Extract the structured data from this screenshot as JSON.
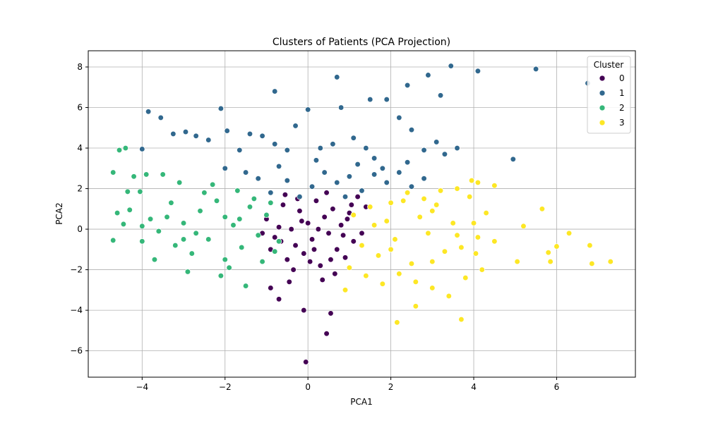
{
  "chart_data": {
    "type": "scatter",
    "title": "Clusters of Patients (PCA Projection)",
    "xlabel": "PCA1",
    "ylabel": "PCA2",
    "xlim": [
      -5.3,
      7.9
    ],
    "ylim": [
      -7.3,
      8.8
    ],
    "xticks": [
      -4,
      -2,
      0,
      2,
      4,
      6
    ],
    "yticks": [
      -6,
      -4,
      -2,
      0,
      2,
      4,
      6,
      8
    ],
    "xtick_labels": [
      "−4",
      "−2",
      "0",
      "2",
      "4",
      "6"
    ],
    "ytick_labels": [
      "−6",
      "−4",
      "−2",
      "0",
      "2",
      "4",
      "6",
      "8"
    ],
    "grid": true,
    "legend": {
      "title": "Cluster",
      "position": "top-right"
    },
    "series": [
      {
        "name": "0",
        "color": "#440154",
        "points": [
          [
            -1.0,
            0.5
          ],
          [
            -0.8,
            -0.4
          ],
          [
            -0.6,
            1.2
          ],
          [
            -0.5,
            -1.5
          ],
          [
            -0.4,
            0.0
          ],
          [
            -0.3,
            -0.8
          ],
          [
            -0.2,
            0.9
          ],
          [
            -0.1,
            -1.2
          ],
          [
            0.0,
            0.3
          ],
          [
            0.1,
            -0.5
          ],
          [
            0.2,
            1.4
          ],
          [
            0.3,
            -1.8
          ],
          [
            0.4,
            0.6
          ],
          [
            0.5,
            -0.2
          ],
          [
            0.6,
            1.0
          ],
          [
            0.7,
            -1.0
          ],
          [
            0.8,
            0.2
          ],
          [
            0.9,
            -1.4
          ],
          [
            1.0,
            0.8
          ],
          [
            1.1,
            -0.6
          ],
          [
            1.2,
            1.6
          ],
          [
            -0.9,
            -1.0
          ],
          [
            -0.7,
            0.1
          ],
          [
            -0.55,
            1.7
          ],
          [
            -0.35,
            -2.0
          ],
          [
            -0.15,
            0.4
          ],
          [
            0.05,
            -1.6
          ],
          [
            0.25,
            0.0
          ],
          [
            0.45,
            1.8
          ],
          [
            0.65,
            -2.2
          ],
          [
            0.85,
            -0.3
          ],
          [
            1.05,
            1.2
          ],
          [
            -0.65,
            -0.6
          ],
          [
            -0.25,
            1.5
          ],
          [
            0.15,
            -1.0
          ],
          [
            0.55,
            -1.5
          ],
          [
            0.95,
            0.5
          ],
          [
            1.3,
            -0.2
          ],
          [
            1.4,
            1.1
          ],
          [
            -1.1,
            -0.2
          ],
          [
            -0.45,
            -2.6
          ],
          [
            0.35,
            -2.5
          ],
          [
            -0.1,
            -4.0
          ],
          [
            0.55,
            -4.15
          ],
          [
            0.45,
            -5.15
          ],
          [
            -0.05,
            -6.55
          ],
          [
            -0.7,
            -3.45
          ],
          [
            -0.9,
            -2.9
          ]
        ]
      },
      {
        "name": "1",
        "color": "#31688e",
        "points": [
          [
            -3.85,
            5.8
          ],
          [
            -3.55,
            5.5
          ],
          [
            -3.25,
            4.7
          ],
          [
            -2.95,
            4.8
          ],
          [
            -2.7,
            4.6
          ],
          [
            -2.4,
            4.4
          ],
          [
            -2.1,
            5.95
          ],
          [
            -1.95,
            4.85
          ],
          [
            -1.65,
            3.9
          ],
          [
            -1.4,
            4.7
          ],
          [
            -1.1,
            4.6
          ],
          [
            -0.8,
            4.2
          ],
          [
            -0.5,
            3.9
          ],
          [
            -0.3,
            5.1
          ],
          [
            0.0,
            5.9
          ],
          [
            0.3,
            4.0
          ],
          [
            0.6,
            4.2
          ],
          [
            0.8,
            6.0
          ],
          [
            1.1,
            4.5
          ],
          [
            1.4,
            4.0
          ],
          [
            1.6,
            3.5
          ],
          [
            1.9,
            6.4
          ],
          [
            2.2,
            5.5
          ],
          [
            2.5,
            4.9
          ],
          [
            2.8,
            3.9
          ],
          [
            3.1,
            4.3
          ],
          [
            3.3,
            3.7
          ],
          [
            3.6,
            4.0
          ],
          [
            -4.0,
            3.95
          ],
          [
            -0.8,
            6.8
          ],
          [
            0.7,
            7.5
          ],
          [
            1.5,
            6.4
          ],
          [
            2.4,
            7.1
          ],
          [
            2.9,
            7.6
          ],
          [
            3.45,
            8.05
          ],
          [
            4.1,
            7.8
          ],
          [
            5.5,
            7.9
          ],
          [
            6.75,
            7.2
          ],
          [
            4.95,
            3.45
          ],
          [
            3.2,
            6.6
          ],
          [
            -2.0,
            3.0
          ],
          [
            -1.5,
            2.8
          ],
          [
            -1.2,
            2.5
          ],
          [
            -0.9,
            1.8
          ],
          [
            -0.5,
            2.4
          ],
          [
            0.1,
            2.1
          ],
          [
            0.4,
            2.8
          ],
          [
            0.7,
            2.3
          ],
          [
            1.0,
            2.6
          ],
          [
            1.3,
            1.9
          ],
          [
            1.6,
            2.7
          ],
          [
            1.9,
            2.3
          ],
          [
            2.2,
            2.8
          ],
          [
            2.5,
            2.1
          ],
          [
            2.8,
            2.5
          ],
          [
            -0.2,
            1.6
          ],
          [
            0.9,
            1.6
          ],
          [
            1.2,
            3.2
          ],
          [
            0.2,
            3.4
          ],
          [
            -0.7,
            3.1
          ],
          [
            1.8,
            3.0
          ],
          [
            2.4,
            3.3
          ]
        ]
      },
      {
        "name": "2",
        "color": "#35b779",
        "points": [
          [
            -4.7,
            2.8
          ],
          [
            -4.55,
            3.9
          ],
          [
            -4.4,
            4.0
          ],
          [
            -4.35,
            1.85
          ],
          [
            -4.2,
            2.6
          ],
          [
            -4.05,
            1.85
          ],
          [
            -3.9,
            2.7
          ],
          [
            -4.6,
            0.8
          ],
          [
            -4.3,
            0.95
          ],
          [
            -4.45,
            0.25
          ],
          [
            -4.0,
            0.15
          ],
          [
            -4.7,
            -0.55
          ],
          [
            -4.0,
            -0.6
          ],
          [
            -3.6,
            -0.1
          ],
          [
            -3.4,
            0.6
          ],
          [
            -3.2,
            -0.8
          ],
          [
            -3.0,
            0.3
          ],
          [
            -2.8,
            -1.2
          ],
          [
            -2.6,
            0.9
          ],
          [
            -2.4,
            -0.5
          ],
          [
            -2.2,
            1.4
          ],
          [
            -2.0,
            -1.5
          ],
          [
            -1.8,
            0.2
          ],
          [
            -1.6,
            -0.9
          ],
          [
            -1.4,
            1.1
          ],
          [
            -1.2,
            -0.3
          ],
          [
            -1.0,
            0.7
          ],
          [
            -0.8,
            -1.1
          ],
          [
            -3.7,
            -1.5
          ],
          [
            -3.3,
            1.3
          ],
          [
            -2.9,
            -2.1
          ],
          [
            -2.5,
            1.8
          ],
          [
            -2.1,
            -2.3
          ],
          [
            -1.7,
            1.9
          ],
          [
            -1.5,
            -2.8
          ],
          [
            -3.5,
            2.7
          ],
          [
            -3.1,
            2.3
          ],
          [
            -2.3,
            2.2
          ],
          [
            -1.9,
            -1.9
          ],
          [
            -1.3,
            1.5
          ],
          [
            -0.9,
            1.3
          ],
          [
            -0.7,
            -0.6
          ],
          [
            -3.8,
            0.5
          ],
          [
            -2.7,
            -0.2
          ],
          [
            -1.1,
            -1.6
          ],
          [
            -1.65,
            0.5
          ],
          [
            -2.0,
            0.6
          ],
          [
            -3.0,
            -0.5
          ]
        ]
      },
      {
        "name": "3",
        "color": "#fde725",
        "points": [
          [
            1.1,
            0.7
          ],
          [
            1.3,
            -0.8
          ],
          [
            1.5,
            1.1
          ],
          [
            1.7,
            -1.3
          ],
          [
            1.9,
            0.4
          ],
          [
            2.1,
            -0.5
          ],
          [
            2.3,
            1.4
          ],
          [
            2.5,
            -1.7
          ],
          [
            2.7,
            0.6
          ],
          [
            2.9,
            -0.2
          ],
          [
            3.1,
            1.2
          ],
          [
            3.3,
            -1.1
          ],
          [
            3.5,
            0.3
          ],
          [
            3.7,
            -0.9
          ],
          [
            3.9,
            1.6
          ],
          [
            4.1,
            -0.4
          ],
          [
            4.3,
            0.8
          ],
          [
            4.5,
            -0.6
          ],
          [
            1.4,
            -2.3
          ],
          [
            1.8,
            -2.7
          ],
          [
            2.2,
            -2.2
          ],
          [
            2.6,
            -2.6
          ],
          [
            3.0,
            -2.9
          ],
          [
            3.4,
            -3.3
          ],
          [
            3.7,
            -4.45
          ],
          [
            2.15,
            -4.6
          ],
          [
            2.6,
            -3.8
          ],
          [
            1.0,
            -1.9
          ],
          [
            0.9,
            -3.0
          ],
          [
            3.95,
            2.4
          ],
          [
            4.1,
            2.3
          ],
          [
            4.5,
            2.15
          ],
          [
            5.05,
            -1.6
          ],
          [
            5.2,
            0.15
          ],
          [
            5.65,
            1.0
          ],
          [
            5.8,
            -1.15
          ],
          [
            5.85,
            -1.6
          ],
          [
            6.0,
            -0.85
          ],
          [
            6.3,
            -0.2
          ],
          [
            6.8,
            -0.8
          ],
          [
            6.85,
            -1.7
          ],
          [
            7.3,
            -1.6
          ],
          [
            4.2,
            -2.0
          ],
          [
            4.05,
            -1.2
          ],
          [
            3.6,
            2.0
          ],
          [
            3.2,
            1.9
          ],
          [
            2.8,
            1.5
          ],
          [
            2.4,
            1.8
          ],
          [
            2.0,
            1.3
          ],
          [
            1.6,
            0.2
          ],
          [
            2.0,
            -1.0
          ],
          [
            3.0,
            0.9
          ],
          [
            3.6,
            -0.3
          ],
          [
            4.0,
            0.3
          ],
          [
            3.8,
            -2.4
          ],
          [
            3.0,
            -1.6
          ]
        ]
      }
    ]
  }
}
